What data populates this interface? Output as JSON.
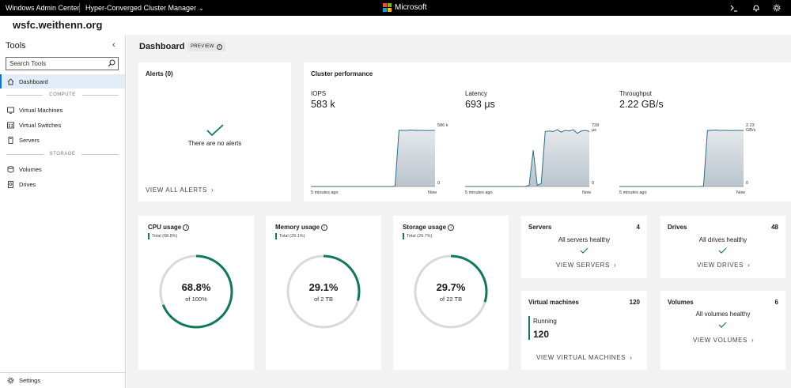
{
  "topbar": {
    "app_title": "Windows Admin Center",
    "tool_selector": "Hyper-Converged Cluster Manager",
    "brand": "Microsoft",
    "brand_colors": [
      "#f25022",
      "#7fba00",
      "#00a4ef",
      "#ffb900"
    ],
    "icons": [
      "terminal-icon",
      "bell-icon",
      "gear-icon"
    ]
  },
  "cluster_name": "wsfc.weithenn.org",
  "sidebar": {
    "title": "Tools",
    "search_placeholder": "Search Tools",
    "items": [
      {
        "label": "Dashboard",
        "icon": "home-icon",
        "active": true
      },
      {
        "label": "Virtual Machines",
        "icon": "vm-icon"
      },
      {
        "label": "Virtual Switches",
        "icon": "switch-icon"
      },
      {
        "label": "Servers",
        "icon": "server-icon"
      },
      {
        "label": "Volumes",
        "icon": "volume-icon"
      },
      {
        "label": "Drives",
        "icon": "drive-icon"
      }
    ],
    "sections": [
      "COMPUTE",
      "STORAGE"
    ],
    "settings_label": "Settings"
  },
  "dashboard": {
    "title": "Dashboard",
    "badge": "PREVIEW",
    "accent": "#0f7a5a",
    "alerts": {
      "title": "Alerts (0)",
      "empty_text": "There are no alerts",
      "link": "VIEW ALL ALERTS"
    },
    "performance": {
      "title": "Cluster performance",
      "x_start": "5 minutes ago",
      "x_end": "Now",
      "metrics": [
        {
          "label": "IOPS",
          "value": "583 k",
          "max_label": "586 k",
          "min_label": "0",
          "values": [
            0,
            0,
            0,
            0,
            0,
            0,
            0,
            0,
            0,
            0,
            0,
            0,
            0,
            0,
            0,
            0,
            0,
            0,
            0,
            0,
            0,
            0.005,
            0.96,
            0.96,
            0.96,
            0.965,
            0.96,
            0.96,
            0.96,
            0.955,
            0.96,
            0.96
          ]
        },
        {
          "label": "Latency",
          "value": "693 μs",
          "max_label": "728 μs",
          "min_label": "0",
          "values": [
            0,
            0,
            0,
            0,
            0,
            0,
            0,
            0,
            0,
            0,
            0,
            0,
            0,
            0,
            0,
            0,
            0.02,
            0.62,
            0.02,
            0.05,
            0.94,
            0.95,
            0.94,
            0.97,
            0.93,
            0.96,
            0.95,
            0.97,
            0.91,
            0.95,
            0.96,
            0.94
          ]
        },
        {
          "label": "Throughput",
          "value": "2.22 GB/s",
          "max_label": "2.23 GB/s",
          "min_label": "0",
          "values": [
            0,
            0,
            0,
            0,
            0,
            0,
            0,
            0,
            0,
            0,
            0,
            0,
            0,
            0,
            0,
            0,
            0,
            0,
            0,
            0,
            0,
            0.005,
            0.96,
            0.96,
            0.965,
            0.96,
            0.96,
            0.96,
            0.955,
            0.96,
            0.96,
            0.96
          ]
        }
      ]
    },
    "usage": [
      {
        "title": "CPU usage",
        "total": "Total (68.8%)",
        "pct_text": "68.8%",
        "of_text": "of 100%",
        "fraction": 0.688
      },
      {
        "title": "Memory usage",
        "total": "Total (29.1%)",
        "pct_text": "29.1%",
        "of_text": "of 2 TB",
        "fraction": 0.291
      },
      {
        "title": "Storage usage",
        "total": "Total (29.7%)",
        "pct_text": "29.7%",
        "of_text": "of 22 TB",
        "fraction": 0.297
      }
    ],
    "servers": {
      "title": "Servers",
      "count": "4",
      "status": "All servers healthy",
      "link": "VIEW SERVERS"
    },
    "drives": {
      "title": "Drives",
      "count": "48",
      "status": "All drives healthy",
      "link": "VIEW DRIVES"
    },
    "vms": {
      "title": "Virtual machines",
      "count": "120",
      "state_label": "Running",
      "state_count": "120",
      "link": "VIEW VIRTUAL MACHINES"
    },
    "volumes": {
      "title": "Volumes",
      "count": "6",
      "status": "All volumes healthy",
      "link": "VIEW VOLUMES"
    }
  }
}
